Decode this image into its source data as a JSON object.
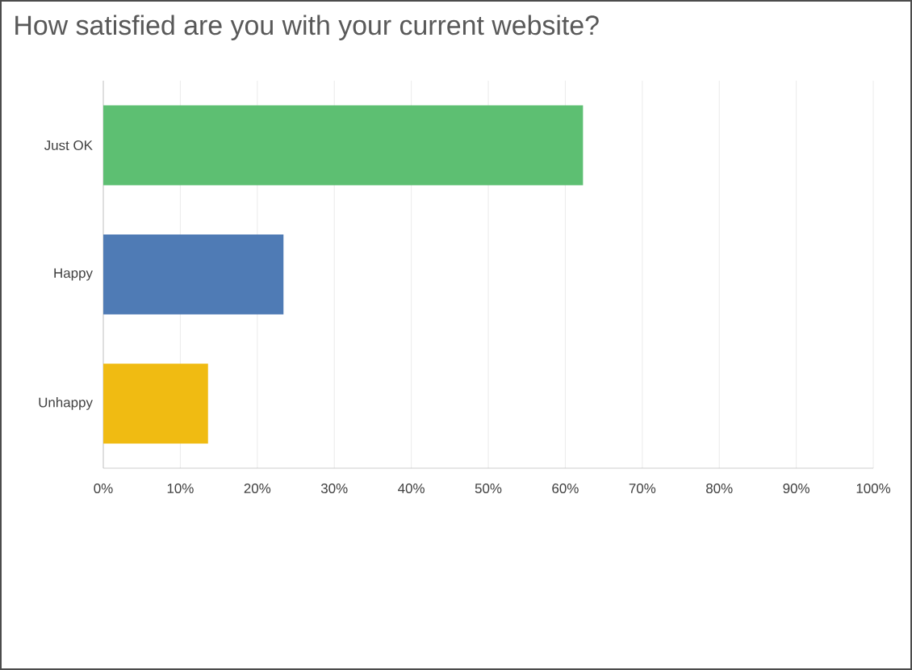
{
  "chart_data": {
    "type": "bar",
    "orientation": "horizontal",
    "title": "How satisfied are you with your current website?",
    "categories": [
      "Just OK",
      "Happy",
      "Unhappy"
    ],
    "values": [
      62.3,
      23.4,
      13.6
    ],
    "colors": [
      "#5dbf72",
      "#4f7bb5",
      "#f0bb12"
    ],
    "xlim": [
      0,
      100
    ],
    "xticks": [
      {
        "value": 0,
        "label": "0%"
      },
      {
        "value": 10,
        "label": "10%"
      },
      {
        "value": 20,
        "label": "20%"
      },
      {
        "value": 30,
        "label": "30%"
      },
      {
        "value": 40,
        "label": "40%"
      },
      {
        "value": 50,
        "label": "50%"
      },
      {
        "value": 60,
        "label": "60%"
      },
      {
        "value": 70,
        "label": "70%"
      },
      {
        "value": 80,
        "label": "80%"
      },
      {
        "value": 90,
        "label": "90%"
      },
      {
        "value": 100,
        "label": "100%"
      }
    ],
    "grid": "x"
  }
}
